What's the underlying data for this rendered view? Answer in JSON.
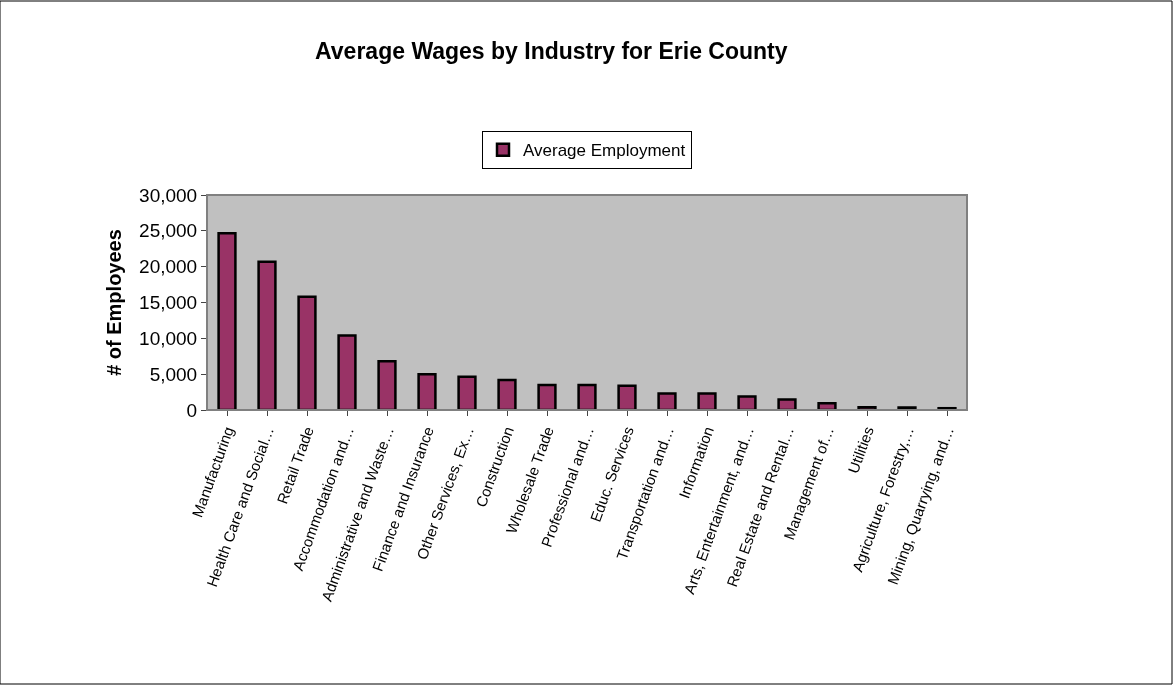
{
  "chart_data": {
    "type": "bar",
    "title": "Average Wages by Industry for Erie County",
    "ylabel": "# of Employees",
    "categories": [
      "Manufacturing",
      "Health Care and Social…",
      "Retail Trade",
      "Accommodation and…",
      "Administrative and Waste…",
      "Finance and Insurance",
      "Other Services, Ex…",
      "Construction",
      "Wholesale Trade",
      "Professional and…",
      "Educ. Services",
      "Transportation and…",
      "Information",
      "Arts, Entertainment, and…",
      "Real Estate and Rental…",
      "Management of…",
      "Utilities",
      "Agriculture, Forestry,…",
      "Mining, Quarrying, and…"
    ],
    "series": [
      {
        "name": "Average Employment",
        "color": "#993366",
        "values": [
          24650,
          20700,
          15800,
          10400,
          6800,
          5000,
          4650,
          4200,
          3500,
          3500,
          3400,
          2300,
          2300,
          1900,
          1450,
          950,
          400,
          350,
          250
        ]
      }
    ],
    "ylim": [
      0,
      30000
    ],
    "yticks": [
      {
        "value": 0,
        "label": "0"
      },
      {
        "value": 5000,
        "label": "5,000"
      },
      {
        "value": 10000,
        "label": "10,000"
      },
      {
        "value": 15000,
        "label": "15,000"
      },
      {
        "value": 20000,
        "label": "20,000"
      },
      {
        "value": 25000,
        "label": "25,000"
      },
      {
        "value": 30000,
        "label": "30,000"
      }
    ],
    "grid": false,
    "legend": "top"
  }
}
